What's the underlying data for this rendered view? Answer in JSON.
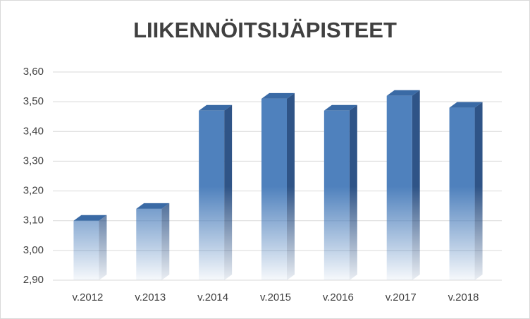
{
  "chart_data": {
    "type": "bar3d",
    "title": "LIIKENNÖITSIJÄPISTEET",
    "categories": [
      "v.2012",
      "v.2013",
      "v.2014",
      "v.2015",
      "v.2016",
      "v.2017",
      "v.2018"
    ],
    "values": [
      3.1,
      3.14,
      3.47,
      3.51,
      3.47,
      3.52,
      3.48
    ],
    "color": "#4f81bd",
    "ylim": [
      2.9,
      3.6
    ],
    "yticks": [
      {
        "value": 2.9,
        "label": "2,90"
      },
      {
        "value": 3.0,
        "label": "3,00"
      },
      {
        "value": 3.1,
        "label": "3,10"
      },
      {
        "value": 3.2,
        "label": "3,20"
      },
      {
        "value": 3.3,
        "label": "3,30"
      },
      {
        "value": 3.4,
        "label": "3,40"
      },
      {
        "value": 3.5,
        "label": "3,50"
      },
      {
        "value": 3.6,
        "label": "3,60"
      }
    ],
    "grid": true
  }
}
